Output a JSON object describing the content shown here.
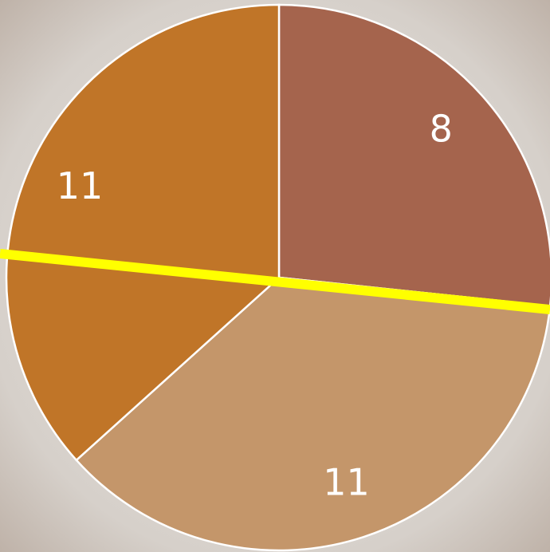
{
  "chart_data": {
    "type": "pie",
    "values": [
      8,
      11,
      11
    ],
    "colors": [
      "#a5644d",
      "#c4966a",
      "#c07528"
    ]
  }
}
